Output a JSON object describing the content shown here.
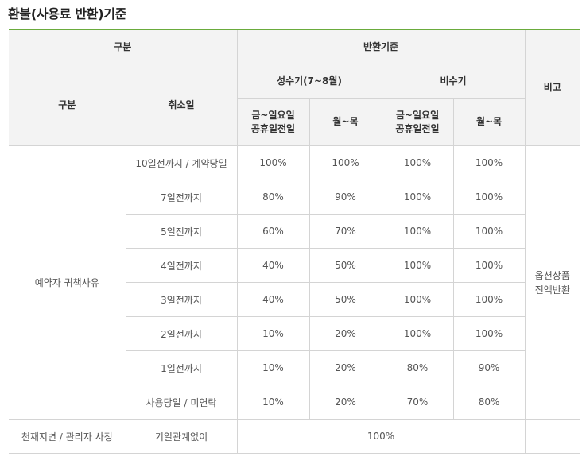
{
  "title": "환불(사용료 반환)기준",
  "headers": {
    "category_top": "구분",
    "refund_basis": "반환기준",
    "remarks": "비고",
    "category": "구분",
    "cancel_day": "취소일",
    "peak_season": "성수기(7~8월)",
    "off_season": "비수기",
    "fri_sun_line1": "금~일요일",
    "fri_sun_line2": "공휴일전일",
    "mon_thu": "월~목"
  },
  "rows": [
    {
      "day": "10일전까지 / 계약당일",
      "v": [
        "100%",
        "100%",
        "100%",
        "100%"
      ]
    },
    {
      "day": "7일전까지",
      "v": [
        "80%",
        "90%",
        "100%",
        "100%"
      ]
    },
    {
      "day": "5일전까지",
      "v": [
        "60%",
        "70%",
        "100%",
        "100%"
      ]
    },
    {
      "day": "4일전까지",
      "v": [
        "40%",
        "50%",
        "100%",
        "100%"
      ]
    },
    {
      "day": "3일전까지",
      "v": [
        "40%",
        "50%",
        "100%",
        "100%"
      ]
    },
    {
      "day": "2일전까지",
      "v": [
        "10%",
        "20%",
        "100%",
        "100%"
      ]
    },
    {
      "day": "1일전까지",
      "v": [
        "10%",
        "20%",
        "80%",
        "90%"
      ]
    },
    {
      "day": "사용당일 / 미연락",
      "v": [
        "10%",
        "20%",
        "70%",
        "80%"
      ]
    }
  ],
  "reservation_reason": "예약자 귀책사유",
  "remark_line1": "옵션상품",
  "remark_line2": "전액반환",
  "disaster_row": {
    "reason": "천재지변 / 관리자 사정",
    "day": "기일관계없이",
    "value": "100%"
  }
}
